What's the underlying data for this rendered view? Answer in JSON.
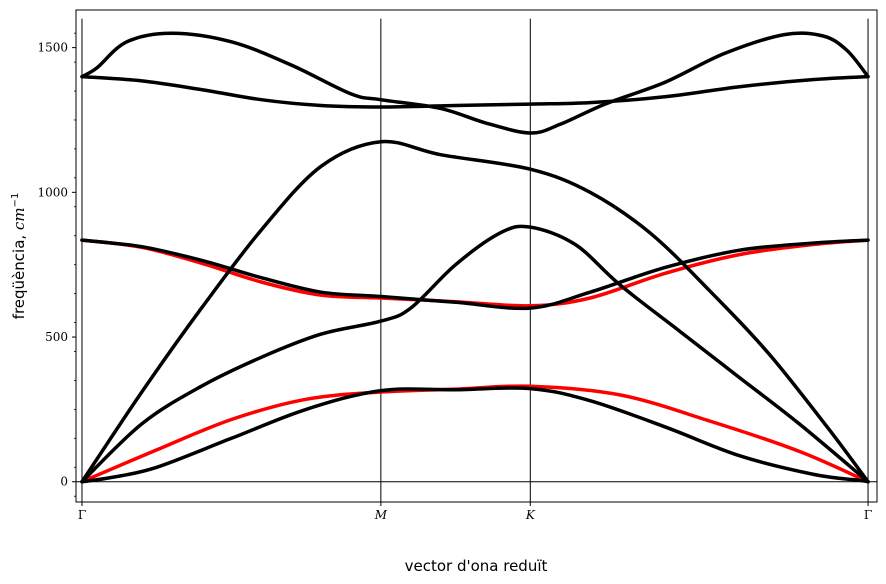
{
  "chart_data": {
    "type": "line",
    "title": "",
    "xlabel": "vector d'ona reduït",
    "ylabel": "freqüència, cm⁻¹",
    "ylabel_plain": "freqüència, ",
    "ylabel_unit": "cm",
    "ylabel_exp": "−1",
    "xlim": [
      -0.02,
      2.66
    ],
    "ylim": [
      -70,
      1630
    ],
    "yticks": [
      0,
      500,
      1000,
      1500
    ],
    "ytick_labels": [
      "0",
      "500",
      "1000",
      "1500"
    ],
    "high_symmetry_points": [
      {
        "label": "Γ",
        "x": 0.0
      },
      {
        "label": "M",
        "x": 1.0
      },
      {
        "label": "K",
        "x": 1.5
      },
      {
        "label": "Γ",
        "x": 2.63
      }
    ],
    "grid": false,
    "legend": "none",
    "colors": {
      "bands": "#000000",
      "highlight": "#ff0000",
      "axes": "#000000"
    },
    "series": [
      {
        "color": "#ff0000",
        "points": [
          [
            0.0,
            0
          ],
          [
            0.25,
            110
          ],
          [
            0.5,
            215
          ],
          [
            0.75,
            285
          ],
          [
            1.0,
            310
          ],
          [
            1.25,
            320
          ],
          [
            1.5,
            330
          ],
          [
            1.8,
            300
          ],
          [
            2.1,
            210
          ],
          [
            2.4,
            105
          ],
          [
            2.63,
            0
          ]
        ]
      },
      {
        "color": "#000000",
        "points": [
          [
            0.0,
            0
          ],
          [
            0.1,
            15
          ],
          [
            0.25,
            50
          ],
          [
            0.5,
            150
          ],
          [
            0.75,
            250
          ],
          [
            1.0,
            315
          ],
          [
            1.25,
            318
          ],
          [
            1.5,
            322
          ],
          [
            1.7,
            280
          ],
          [
            1.95,
            190
          ],
          [
            2.2,
            90
          ],
          [
            2.45,
            25
          ],
          [
            2.6,
            5
          ],
          [
            2.63,
            0
          ]
        ]
      },
      {
        "color": "#000000",
        "points": [
          [
            0.0,
            0
          ],
          [
            0.2,
            200
          ],
          [
            0.4,
            330
          ],
          [
            0.6,
            430
          ],
          [
            0.8,
            510
          ],
          [
            1.0,
            555
          ],
          [
            1.1,
            600
          ],
          [
            1.25,
            750
          ],
          [
            1.4,
            860
          ],
          [
            1.5,
            880
          ],
          [
            1.65,
            820
          ],
          [
            1.8,
            680
          ],
          [
            2.0,
            520
          ],
          [
            2.2,
            360
          ],
          [
            2.4,
            200
          ],
          [
            2.63,
            0
          ]
        ]
      },
      {
        "color": "#000000",
        "points": [
          [
            0.0,
            0
          ],
          [
            0.2,
            310
          ],
          [
            0.4,
            600
          ],
          [
            0.6,
            870
          ],
          [
            0.8,
            1090
          ],
          [
            1.0,
            1175
          ],
          [
            1.2,
            1130
          ],
          [
            1.5,
            1080
          ],
          [
            1.7,
            1000
          ],
          [
            1.9,
            860
          ],
          [
            2.1,
            660
          ],
          [
            2.3,
            440
          ],
          [
            2.5,
            180
          ],
          [
            2.63,
            0
          ]
        ]
      },
      {
        "color": "#ff0000",
        "points": [
          [
            0.0,
            835
          ],
          [
            0.2,
            810
          ],
          [
            0.4,
            755
          ],
          [
            0.6,
            690
          ],
          [
            0.8,
            645
          ],
          [
            1.0,
            635
          ],
          [
            1.25,
            622
          ],
          [
            1.5,
            608
          ],
          [
            1.7,
            635
          ],
          [
            1.95,
            720
          ],
          [
            2.2,
            785
          ],
          [
            2.45,
            820
          ],
          [
            2.63,
            835
          ]
        ]
      },
      {
        "color": "#000000",
        "points": [
          [
            0.0,
            835
          ],
          [
            0.2,
            812
          ],
          [
            0.4,
            765
          ],
          [
            0.6,
            705
          ],
          [
            0.8,
            655
          ],
          [
            1.0,
            640
          ],
          [
            1.25,
            620
          ],
          [
            1.5,
            600
          ],
          [
            1.7,
            655
          ],
          [
            1.95,
            740
          ],
          [
            2.2,
            800
          ],
          [
            2.45,
            825
          ],
          [
            2.63,
            835
          ]
        ]
      },
      {
        "color": "#000000",
        "points": [
          [
            0.0,
            1400
          ],
          [
            0.2,
            1385
          ],
          [
            0.4,
            1355
          ],
          [
            0.6,
            1320
          ],
          [
            0.8,
            1300
          ],
          [
            1.0,
            1295
          ],
          [
            1.25,
            1300
          ],
          [
            1.5,
            1305
          ],
          [
            1.7,
            1310
          ],
          [
            1.95,
            1330
          ],
          [
            2.2,
            1365
          ],
          [
            2.45,
            1390
          ],
          [
            2.63,
            1400
          ]
        ]
      },
      {
        "color": "#000000",
        "points": [
          [
            0.0,
            1400
          ],
          [
            0.05,
            1430
          ],
          [
            0.15,
            1520
          ],
          [
            0.3,
            1550
          ],
          [
            0.5,
            1520
          ],
          [
            0.7,
            1440
          ],
          [
            0.9,
            1340
          ],
          [
            1.0,
            1320
          ],
          [
            1.2,
            1290
          ],
          [
            1.35,
            1240
          ],
          [
            1.5,
            1205
          ],
          [
            1.6,
            1235
          ],
          [
            1.75,
            1305
          ],
          [
            1.95,
            1380
          ],
          [
            2.15,
            1480
          ],
          [
            2.35,
            1545
          ],
          [
            2.48,
            1540
          ],
          [
            2.56,
            1490
          ],
          [
            2.63,
            1400
          ]
        ]
      }
    ]
  }
}
